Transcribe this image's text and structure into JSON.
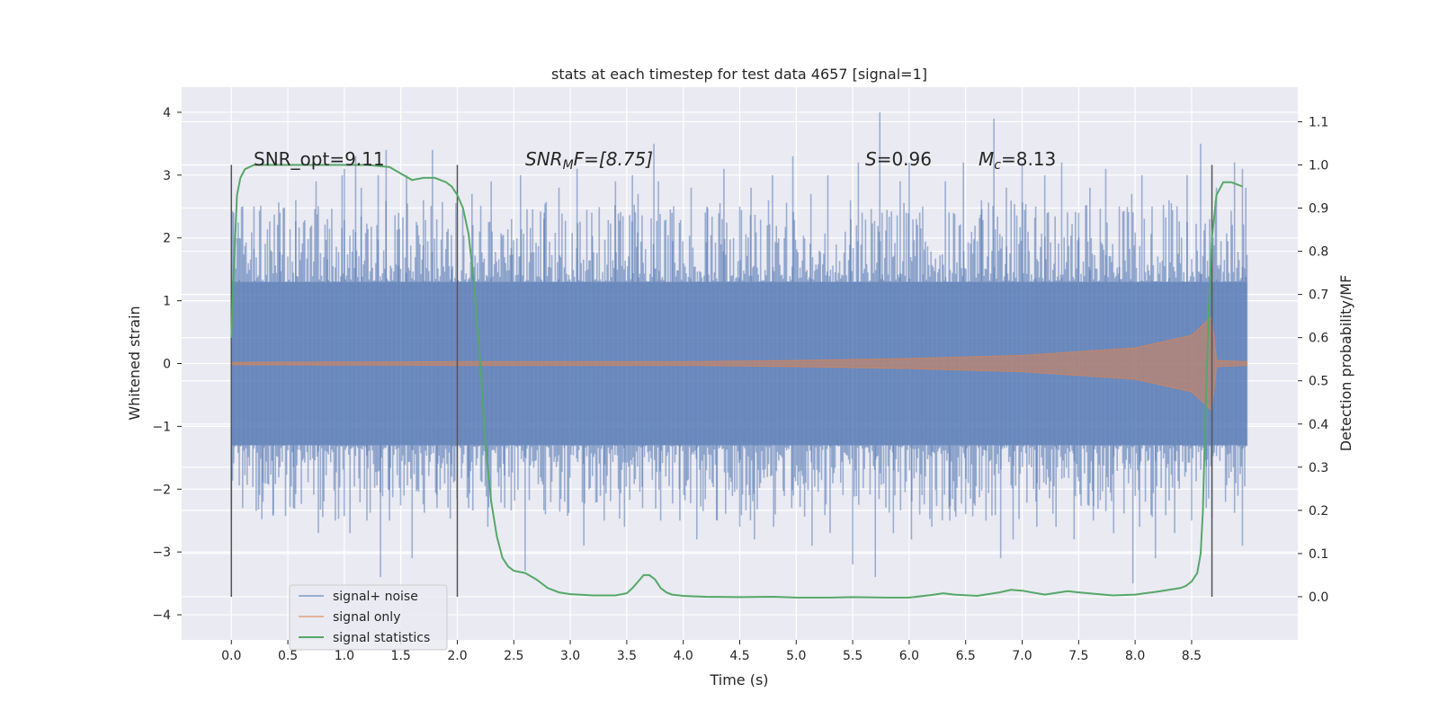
{
  "chart_data": {
    "type": "line",
    "title": "stats at each timestep for test data 4657 [signal=1]",
    "xlabel": "Time (s)",
    "ylabel": "Whitened strain",
    "y2label": "Detection probability/MF",
    "xlim": [
      -0.44,
      9.44
    ],
    "ylim": [
      -4.4,
      4.4
    ],
    "y2lim": [
      -0.1,
      1.18
    ],
    "x_ticks": [
      "0.0",
      "0.5",
      "1.0",
      "1.5",
      "2.0",
      "2.5",
      "3.0",
      "3.5",
      "4.0",
      "4.5",
      "5.0",
      "5.5",
      "6.0",
      "6.5",
      "7.0",
      "7.5",
      "8.0",
      "8.5"
    ],
    "x_tick_values": [
      0,
      0.5,
      1,
      1.5,
      2,
      2.5,
      3,
      3.5,
      4,
      4.5,
      5,
      5.5,
      6,
      6.5,
      7,
      7.5,
      8,
      8.5
    ],
    "y_ticks": [
      "−4",
      "−3",
      "−2",
      "−1",
      "0",
      "1",
      "2",
      "3",
      "4"
    ],
    "y_tick_values": [
      -4,
      -3,
      -2,
      -1,
      0,
      1,
      2,
      3,
      4
    ],
    "y2_ticks": [
      "0.0",
      "0.1",
      "0.2",
      "0.3",
      "0.4",
      "0.5",
      "0.6",
      "0.7",
      "0.8",
      "0.9",
      "1.0",
      "1.1"
    ],
    "y2_tick_values": [
      0,
      0.1,
      0.2,
      0.3,
      0.4,
      0.5,
      0.6,
      0.7,
      0.8,
      0.9,
      1.0,
      1.1
    ],
    "grid": true,
    "legend_position": "lower-left",
    "annotations": {
      "snr_opt": "SNR_opt=9.11",
      "snr_mf_base": "SNR",
      "snr_mf_sub": "M",
      "snr_mf_rest": "F=[8.75]",
      "s_sym": "S",
      "s_rest": "=0.96",
      "mc_sym": "M",
      "mc_sub": "c",
      "mc_rest": "=8.13"
    },
    "vertical_lines_x": [
      0.0,
      2.0,
      8.68
    ],
    "series": [
      {
        "name": "signal+ noise",
        "color": "#4c72b0",
        "t_range": [
          0,
          8.99
        ],
        "core_amplitude": 1.3,
        "peaks_upper": [
          [
            0.0,
            1.6
          ],
          [
            0.07,
            2.0
          ],
          [
            0.2,
            2.5
          ],
          [
            0.43,
            2.4
          ],
          [
            0.57,
            2.6
          ],
          [
            0.75,
            2.9
          ],
          [
            0.85,
            2.3
          ],
          [
            0.98,
            3.0
          ],
          [
            1.0,
            3.1
          ],
          [
            1.1,
            3.3
          ],
          [
            1.15,
            2.8
          ],
          [
            1.3,
            3.0
          ],
          [
            1.37,
            3.4
          ],
          [
            1.48,
            2.4
          ],
          [
            1.55,
            3.0
          ],
          [
            1.7,
            2.6
          ],
          [
            1.78,
            3.4
          ],
          [
            1.95,
            1.5
          ],
          [
            2.13,
            2.7
          ],
          [
            2.3,
            2.9
          ],
          [
            2.48,
            2.3
          ],
          [
            2.56,
            3.0
          ],
          [
            2.77,
            2.4
          ],
          [
            2.9,
            2.8
          ],
          [
            3.06,
            3.1
          ],
          [
            3.19,
            2.4
          ],
          [
            3.4,
            2.9
          ],
          [
            3.55,
            3.0
          ],
          [
            3.6,
            2.7
          ],
          [
            3.74,
            3.5
          ],
          [
            3.78,
            2.9
          ],
          [
            3.9,
            2.4
          ],
          [
            4.07,
            2.8
          ],
          [
            4.21,
            2.5
          ],
          [
            4.36,
            3.1
          ],
          [
            4.5,
            2.5
          ],
          [
            4.6,
            2.8
          ],
          [
            4.79,
            3.0
          ],
          [
            4.97,
            3.3
          ],
          [
            5.13,
            2.7
          ],
          [
            5.28,
            3.0
          ],
          [
            5.48,
            2.6
          ],
          [
            5.55,
            3.2
          ],
          [
            5.74,
            4.0
          ],
          [
            5.76,
            2.4
          ],
          [
            5.92,
            2.9
          ],
          [
            6.0,
            3.2
          ],
          [
            6.12,
            2.5
          ],
          [
            6.32,
            2.9
          ],
          [
            6.48,
            3.2
          ],
          [
            6.64,
            2.6
          ],
          [
            6.75,
            3.9
          ],
          [
            6.86,
            2.8
          ],
          [
            7.0,
            3.2
          ],
          [
            7.12,
            2.5
          ],
          [
            7.2,
            3.0
          ],
          [
            7.35,
            3.2
          ],
          [
            7.5,
            2.4
          ],
          [
            7.6,
            2.8
          ],
          [
            7.74,
            3.1
          ],
          [
            7.86,
            2.5
          ],
          [
            7.97,
            2.7
          ],
          [
            8.06,
            3.0
          ],
          [
            8.15,
            2.5
          ],
          [
            8.3,
            2.6
          ],
          [
            8.46,
            3.0
          ],
          [
            8.58,
            3.5
          ],
          [
            8.72,
            2.8
          ],
          [
            8.88,
            3.2
          ],
          [
            8.95,
            3.1
          ],
          [
            8.98,
            2.8
          ]
        ],
        "peaks_lower": [
          [
            0.0,
            -2.5
          ],
          [
            0.1,
            -2.3
          ],
          [
            0.28,
            -2.2
          ],
          [
            0.37,
            -2.4
          ],
          [
            0.55,
            -2.3
          ],
          [
            0.77,
            -2.7
          ],
          [
            0.92,
            -2.5
          ],
          [
            1.05,
            -2.7
          ],
          [
            1.2,
            -2.5
          ],
          [
            1.32,
            -3.4
          ],
          [
            1.4,
            -2.5
          ],
          [
            1.6,
            -3.1
          ],
          [
            1.82,
            -2.3
          ],
          [
            1.95,
            -1.8
          ],
          [
            2.1,
            -2.3
          ],
          [
            2.27,
            -2.6
          ],
          [
            2.42,
            -2.3
          ],
          [
            2.6,
            -3.3
          ],
          [
            2.78,
            -2.4
          ],
          [
            2.95,
            -2.2
          ],
          [
            3.12,
            -2.9
          ],
          [
            3.3,
            -2.5
          ],
          [
            3.48,
            -2.6
          ],
          [
            3.64,
            -2.3
          ],
          [
            3.8,
            -2.5
          ],
          [
            3.97,
            -2.5
          ],
          [
            4.12,
            -2.8
          ],
          [
            4.3,
            -2.5
          ],
          [
            4.5,
            -2.6
          ],
          [
            4.63,
            -2.8
          ],
          [
            4.8,
            -2.6
          ],
          [
            4.96,
            -2.3
          ],
          [
            5.14,
            -2.9
          ],
          [
            5.3,
            -2.7
          ],
          [
            5.5,
            -3.2
          ],
          [
            5.7,
            -3.4
          ],
          [
            5.86,
            -2.7
          ],
          [
            6.02,
            -2.8
          ],
          [
            6.2,
            -2.6
          ],
          [
            6.36,
            -2.5
          ],
          [
            6.5,
            -2.4
          ],
          [
            6.68,
            -2.5
          ],
          [
            6.81,
            -3.1
          ],
          [
            6.92,
            -2.8
          ],
          [
            7.13,
            -2.6
          ],
          [
            7.3,
            -2.6
          ],
          [
            7.46,
            -2.8
          ],
          [
            7.63,
            -2.5
          ],
          [
            7.81,
            -2.7
          ],
          [
            7.98,
            -3.5
          ],
          [
            8.04,
            -2.6
          ],
          [
            8.18,
            -3.1
          ],
          [
            8.35,
            -2.7
          ],
          [
            8.5,
            -2.5
          ],
          [
            8.63,
            -2.3
          ],
          [
            8.8,
            -2.2
          ],
          [
            8.95,
            -2.9
          ]
        ]
      },
      {
        "name": "signal only",
        "color": "#dd8452",
        "t_range": [
          0,
          8.99
        ],
        "envelope": [
          [
            0.0,
            0.02
          ],
          [
            2.0,
            0.03
          ],
          [
            4.0,
            0.03
          ],
          [
            5.0,
            0.05
          ],
          [
            6.0,
            0.08
          ],
          [
            7.0,
            0.13
          ],
          [
            8.0,
            0.25
          ],
          [
            8.5,
            0.45
          ],
          [
            8.68,
            0.75
          ],
          [
            8.72,
            0.05
          ],
          [
            8.99,
            0.03
          ]
        ]
      },
      {
        "name": "signal statistics",
        "color": "#55a868",
        "x": [
          0.0,
          0.02,
          0.05,
          0.08,
          0.12,
          0.2,
          0.3,
          0.5,
          0.8,
          1.0,
          1.2,
          1.4,
          1.5,
          1.6,
          1.7,
          1.8,
          1.9,
          1.95,
          2.0,
          2.05,
          2.1,
          2.15,
          2.2,
          2.25,
          2.3,
          2.35,
          2.4,
          2.45,
          2.5,
          2.6,
          2.7,
          2.8,
          2.9,
          3.0,
          3.2,
          3.4,
          3.5,
          3.55,
          3.6,
          3.65,
          3.7,
          3.75,
          3.8,
          3.85,
          3.9,
          4.0,
          4.2,
          4.5,
          4.8,
          5.0,
          5.3,
          5.5,
          5.8,
          6.0,
          6.2,
          6.3,
          6.4,
          6.6,
          6.8,
          6.9,
          7.0,
          7.2,
          7.4,
          7.5,
          7.8,
          8.0,
          8.2,
          8.4,
          8.45,
          8.5,
          8.55,
          8.58,
          8.6,
          8.62,
          8.65,
          8.68,
          8.72,
          8.78,
          8.85,
          8.9,
          8.95
        ],
        "values": [
          0.6,
          0.75,
          0.93,
          0.97,
          0.99,
          1.0,
          1.0,
          1.0,
          1.0,
          1.0,
          1.0,
          0.995,
          0.98,
          0.965,
          0.97,
          0.97,
          0.96,
          0.95,
          0.93,
          0.9,
          0.84,
          0.72,
          0.55,
          0.35,
          0.22,
          0.14,
          0.09,
          0.07,
          0.06,
          0.055,
          0.04,
          0.02,
          0.01,
          0.006,
          0.003,
          0.003,
          0.008,
          0.02,
          0.035,
          0.05,
          0.05,
          0.04,
          0.02,
          0.01,
          0.005,
          0.002,
          0.0,
          -0.001,
          0.0,
          -0.002,
          -0.002,
          -0.001,
          -0.002,
          -0.002,
          0.004,
          0.008,
          0.005,
          0.002,
          0.01,
          0.016,
          0.014,
          0.005,
          0.013,
          0.01,
          0.003,
          0.005,
          0.012,
          0.02,
          0.025,
          0.035,
          0.055,
          0.1,
          0.2,
          0.4,
          0.65,
          0.83,
          0.93,
          0.96,
          0.96,
          0.955,
          0.95
        ]
      }
    ]
  }
}
